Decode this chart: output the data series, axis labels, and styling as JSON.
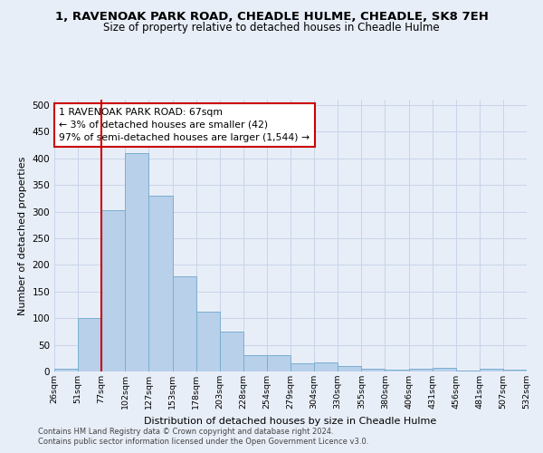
{
  "title": "1, RAVENOAK PARK ROAD, CHEADLE HULME, CHEADLE, SK8 7EH",
  "subtitle": "Size of property relative to detached houses in Cheadle Hulme",
  "xlabel": "Distribution of detached houses by size in Cheadle Hulme",
  "ylabel": "Number of detached properties",
  "bar_values": [
    5,
    100,
    303,
    410,
    330,
    178,
    112,
    75,
    30,
    30,
    15,
    17,
    10,
    5,
    3,
    5,
    7,
    2,
    5,
    3
  ],
  "bar_labels": [
    "26sqm",
    "51sqm",
    "77sqm",
    "102sqm",
    "127sqm",
    "153sqm",
    "178sqm",
    "203sqm",
    "228sqm",
    "254sqm",
    "279sqm",
    "304sqm",
    "330sqm",
    "355sqm",
    "380sqm",
    "406sqm",
    "431sqm",
    "456sqm",
    "481sqm",
    "507sqm",
    "532sqm"
  ],
  "bar_color": "#b8d0ea",
  "bar_edge_color": "#7aaed0",
  "vline_color": "#cc0000",
  "annotation_text": "1 RAVENOAK PARK ROAD: 67sqm\n← 3% of detached houses are smaller (42)\n97% of semi-detached houses are larger (1,544) →",
  "annotation_box_color": "#cc0000",
  "ylim": [
    0,
    510
  ],
  "yticks": [
    0,
    50,
    100,
    150,
    200,
    250,
    300,
    350,
    400,
    450,
    500
  ],
  "grid_color": "#c8d4e8",
  "background_color": "#e8eef8",
  "footer1": "Contains HM Land Registry data © Crown copyright and database right 2024.",
  "footer2": "Contains public sector information licensed under the Open Government Licence v3.0."
}
